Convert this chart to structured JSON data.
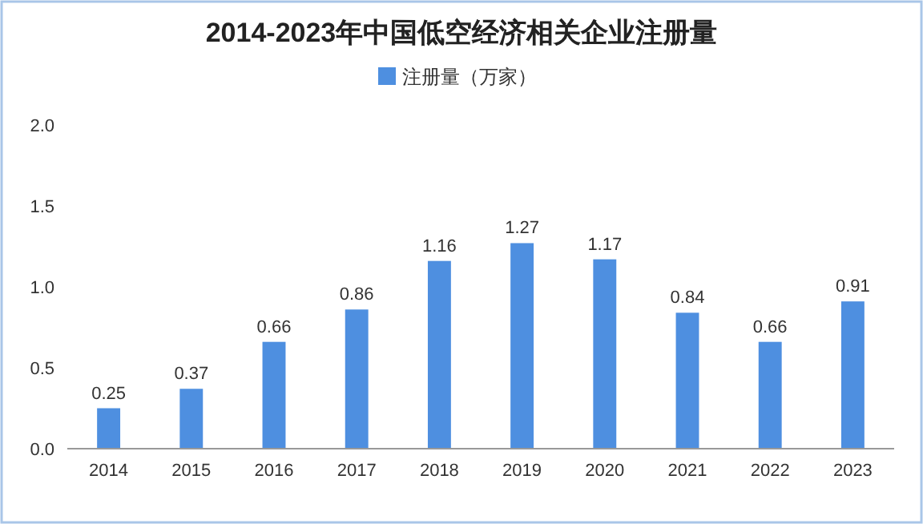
{
  "chart_data": {
    "type": "bar",
    "title": "2014-2023年中国低空经济相关企业注册量",
    "categories": [
      "2014",
      "2015",
      "2016",
      "2017",
      "2018",
      "2019",
      "2020",
      "2021",
      "2022",
      "2023"
    ],
    "series": [
      {
        "name": "注册量（万家）",
        "color": "#4e8fe0",
        "values": [
          0.25,
          0.37,
          0.66,
          0.86,
          1.16,
          1.27,
          1.17,
          0.84,
          0.66,
          0.91
        ]
      }
    ],
    "ylim": [
      0,
      2
    ],
    "yticks": [
      {
        "value": 0,
        "label": "0.0"
      },
      {
        "value": 0.5,
        "label": "0.5"
      },
      {
        "value": 1,
        "label": "1.0"
      },
      {
        "value": 1.5,
        "label": "1.5"
      },
      {
        "value": 2,
        "label": "2.0"
      }
    ],
    "data_labels": true,
    "legend": "top",
    "grid": false
  }
}
